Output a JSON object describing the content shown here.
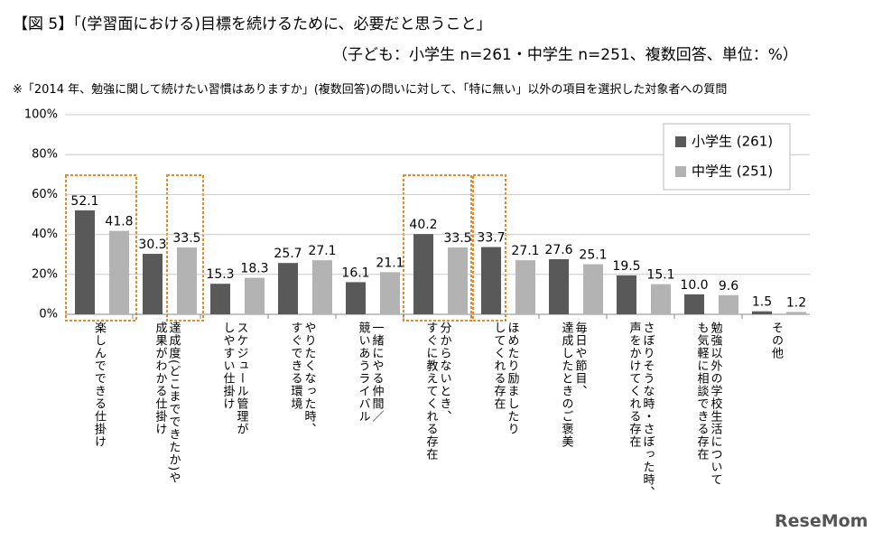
{
  "chart_data": {
    "type": "bar",
    "title": "【図 5】「(学習面における)目標を続けるために、必要だと思うこと」",
    "subtitle": "（子ども：小学生 n=261・中学生 n=251、複数回答、単位：%）",
    "note": "※「2014 年、勉強に関して続けたい習慣はありますか」(複数回答)の問いに対して、「特に無い」以外の項目を選択した対象者への質問",
    "logo": "ReseMom",
    "categories": [
      "楽しんでできる仕掛け",
      "達成度(どこまでできたか)や\n成果がわかる仕掛け",
      "スケジュール管理が\nしやすい仕掛け",
      "やりたくなった時、\nすぐできる環境",
      "一緒にやる仲間／\n競いあうライバル",
      "分からないとき、\nすぐに教えてくれる存在",
      "ほめたり励ましたり\nしてくれる存在",
      "毎日や節目、\n達成したときのご褒美",
      "さぼりそうな時・さぼった時、\n声をかけてくれる存在",
      "勉強以外の学校生活について\nも気軽に相談できる存在",
      "その他"
    ],
    "series": [
      {
        "name": "小学生 (261)",
        "color": "#595959",
        "values": [
          52.1,
          30.3,
          15.3,
          25.7,
          16.1,
          40.2,
          33.7,
          27.6,
          19.5,
          10.0,
          1.5
        ],
        "value_labels": [
          "52.1",
          "30.3",
          "15.3",
          "25.7",
          "16.1",
          "40.2",
          "33.7",
          "27.6",
          "19.5",
          "10.0",
          "1.5"
        ]
      },
      {
        "name": "中学生 (251)",
        "color": "#b3b3b3",
        "values": [
          41.8,
          33.5,
          18.3,
          27.1,
          21.1,
          33.5,
          27.1,
          25.1,
          15.1,
          9.6,
          1.2
        ],
        "value_labels": [
          "41.8",
          "33.5",
          "18.3",
          "27.1",
          "21.1",
          "33.5",
          "27.1",
          "25.1",
          "15.1",
          "9.6",
          "1.2"
        ]
      }
    ],
    "ylim": [
      0,
      100
    ],
    "yticks": [
      {
        "value": 0,
        "label": "0%"
      },
      {
        "value": 20,
        "label": "20%"
      },
      {
        "value": 40,
        "label": "40%"
      },
      {
        "value": 60,
        "label": "60%"
      },
      {
        "value": 80,
        "label": "80%"
      },
      {
        "value": 100,
        "label": "100%"
      }
    ],
    "grid": true,
    "legend": "upper right"
  }
}
